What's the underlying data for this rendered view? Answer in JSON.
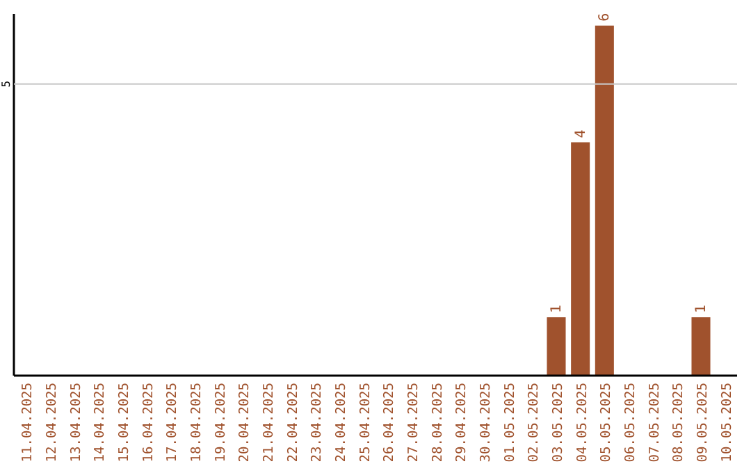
{
  "chart_data": {
    "type": "bar",
    "categories": [
      "11.04.2025",
      "12.04.2025",
      "13.04.2025",
      "14.04.2025",
      "15.04.2025",
      "16.04.2025",
      "17.04.2025",
      "18.04.2025",
      "19.04.2025",
      "20.04.2025",
      "21.04.2025",
      "22.04.2025",
      "23.04.2025",
      "24.04.2025",
      "25.04.2025",
      "26.04.2025",
      "27.04.2025",
      "28.04.2025",
      "29.04.2025",
      "30.04.2025",
      "01.05.2025",
      "02.05.2025",
      "03.05.2025",
      "04.05.2025",
      "05.05.2025",
      "06.05.2025",
      "07.05.2025",
      "08.05.2025",
      "09.05.2025",
      "10.05.2025"
    ],
    "values": [
      null,
      null,
      null,
      null,
      null,
      null,
      null,
      null,
      null,
      null,
      null,
      null,
      null,
      null,
      null,
      null,
      null,
      null,
      null,
      null,
      null,
      null,
      1,
      4,
      6,
      null,
      null,
      null,
      1,
      null
    ],
    "data_labels": true,
    "color": "#a0522d",
    "ylim": [
      0,
      6.2
    ],
    "ref_lines": [
      {
        "axis": "y",
        "value": 5,
        "label": "5",
        "color": "#c8c8c8"
      }
    ]
  }
}
